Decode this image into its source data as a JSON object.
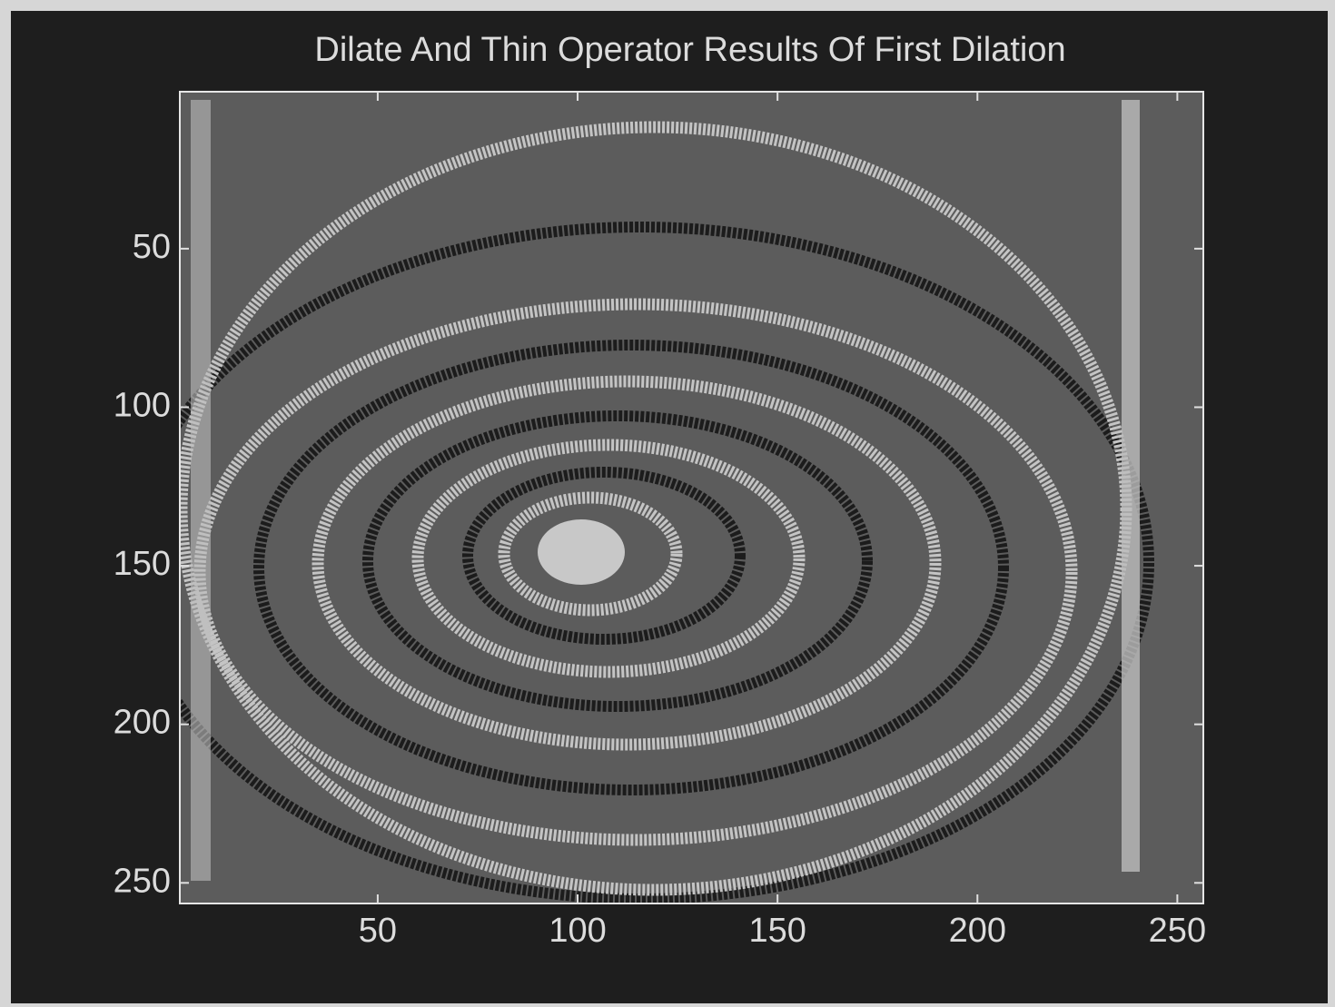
{
  "chart_data": {
    "type": "image",
    "title": "Dilate And Thin Operator Results Of First Dilation",
    "xlim": [
      0.5,
      256.5
    ],
    "ylim": [
      256.5,
      0.5
    ],
    "xticks": [
      50,
      100,
      150,
      200,
      250
    ],
    "yticks": [
      50,
      100,
      150,
      200,
      250
    ],
    "grid": false
  }
}
